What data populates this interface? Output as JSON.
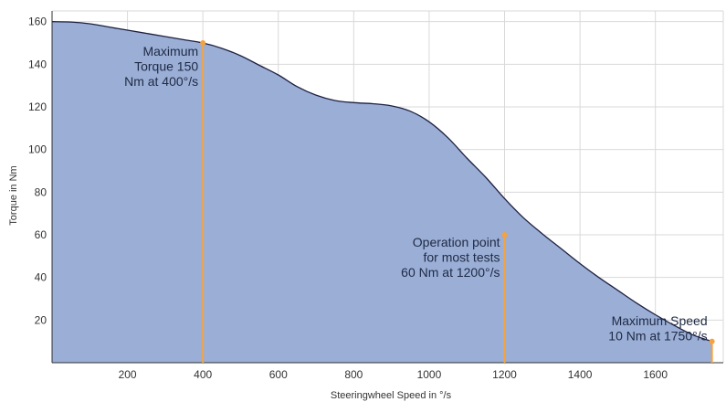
{
  "chart_data": {
    "type": "area",
    "xlabel": "Steeringwheel Speed in °/s",
    "ylabel": "Torque in Nm",
    "xlim": [
      0,
      1780
    ],
    "ylim": [
      0,
      165
    ],
    "x_ticks": [
      200,
      400,
      600,
      800,
      1000,
      1200,
      1400,
      1600
    ],
    "y_ticks": [
      20,
      40,
      60,
      80,
      100,
      120,
      140,
      160
    ],
    "grid": true,
    "series": [
      {
        "x": [
          0,
          50,
          100,
          150,
          200,
          250,
          300,
          350,
          400,
          450,
          500,
          550,
          600,
          650,
          700,
          750,
          800,
          850,
          900,
          950,
          1000,
          1050,
          1100,
          1150,
          1200,
          1250,
          1300,
          1350,
          1400,
          1450,
          1500,
          1550,
          1600,
          1650,
          1700,
          1750
        ],
        "y": [
          160,
          159.8,
          159,
          157.5,
          156,
          154.5,
          153,
          151.5,
          150,
          147.5,
          144,
          139.5,
          135,
          129.5,
          125.5,
          123,
          122,
          121.5,
          120.5,
          118,
          113,
          105.5,
          96,
          87,
          77,
          68,
          60.5,
          53.5,
          46.5,
          40,
          34,
          28,
          22.5,
          17.5,
          13,
          10
        ]
      }
    ],
    "annotations": [
      {
        "x": 400,
        "y": 150,
        "lines": [
          "Maximum",
          "Torque 150",
          "Nm at 400°/s"
        ]
      },
      {
        "x": 1200,
        "y": 60,
        "lines": [
          "Operation point",
          "for most tests",
          "60 Nm at 1200°/s"
        ]
      },
      {
        "x": 1750,
        "y": 10,
        "lines": [
          "Maximum Speed",
          "10 Nm at 1750°/s"
        ]
      }
    ],
    "colors": {
      "fill": "#9aaed6",
      "line": "#1f2040",
      "marker": "#f4a340",
      "grid": "#d9d9d9"
    }
  }
}
